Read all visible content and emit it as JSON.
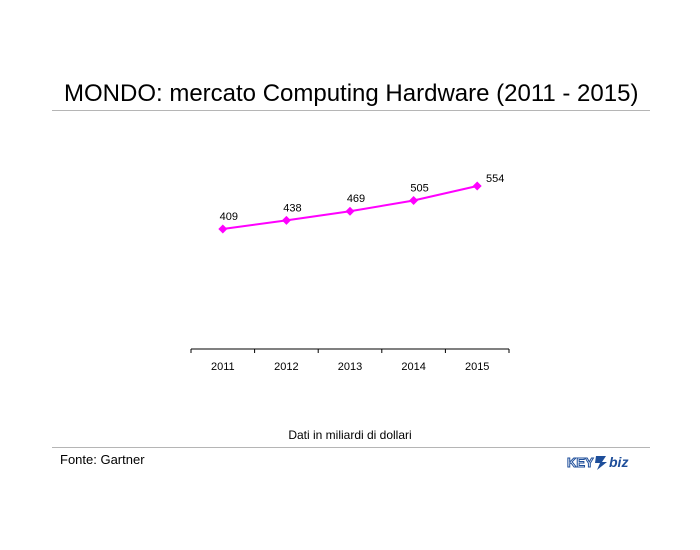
{
  "title": "MONDO: mercato Computing Hardware (2011 - 2015)",
  "note": "Dati in miliardi di dollari",
  "source": "Fonte: Gartner",
  "logo_text": "KEY4biz",
  "colors": {
    "series_line": "#ff00ff",
    "series_marker": "#ff00ff",
    "axis": "#000000",
    "rule": "#b5b5b5",
    "logo_blue": "#1e4e9a"
  },
  "chart_data": {
    "type": "line",
    "categories": [
      "2011",
      "2012",
      "2013",
      "2014",
      "2015"
    ],
    "series": [
      {
        "values": [
          409,
          438,
          469,
          505,
          554
        ]
      }
    ],
    "data_labels": [
      "409",
      "438",
      "469",
      "505",
      "554"
    ],
    "title": "MONDO: mercato Computing Hardware (2011 - 2015)",
    "xlabel": "",
    "ylabel": "",
    "y_axis_visible": false,
    "grid": false,
    "legend": "none",
    "marker": "diamond"
  }
}
